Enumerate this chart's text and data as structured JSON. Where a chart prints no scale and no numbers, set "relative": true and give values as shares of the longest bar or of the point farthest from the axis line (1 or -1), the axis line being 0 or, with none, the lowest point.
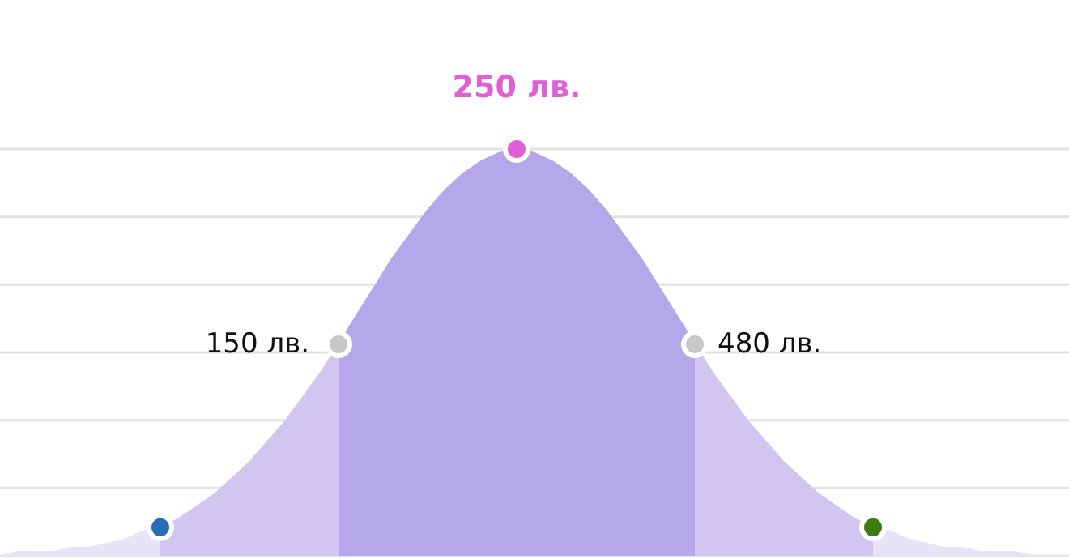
{
  "chart_data": {
    "type": "area",
    "relative": true,
    "grid": "y",
    "legend": false,
    "categories": [
      null,
      null,
      null,
      null,
      null,
      null,
      null,
      null,
      null,
      null,
      null,
      null,
      null,
      null,
      null,
      null,
      null,
      null,
      null,
      null,
      null,
      null,
      null,
      null,
      null,
      null,
      null,
      null,
      null,
      null,
      null,
      null,
      null,
      null,
      null,
      null,
      null,
      null,
      null,
      null,
      null,
      null,
      null,
      null,
      null,
      null,
      null,
      null,
      null,
      null,
      null,
      null,
      null,
      null,
      null,
      null,
      null,
      null,
      null,
      null,
      null
    ],
    "series": [
      {
        "color": "#e8e4f7",
        "values": [
          0,
          0.01,
          0.01,
          0.01,
          0.02,
          0.02,
          0.03,
          0.04,
          0.06,
          0.07,
          null,
          null,
          null,
          null,
          null,
          null,
          null,
          null,
          null,
          null,
          null,
          null,
          null,
          null,
          null,
          null,
          null,
          null,
          null,
          null,
          null,
          null,
          null,
          null,
          null,
          null,
          null,
          null,
          null,
          null,
          null,
          null,
          null,
          null,
          null,
          null,
          null,
          null,
          null,
          0.07,
          0.06,
          0.04,
          0.03,
          0.02,
          0.02,
          0.01,
          0.01,
          0.01,
          0,
          0,
          0
        ]
      },
      {
        "color": "#d0c6f0",
        "values": [
          null,
          null,
          null,
          null,
          null,
          null,
          null,
          null,
          null,
          0.07,
          0.09,
          0.12,
          0.15,
          0.19,
          0.23,
          0.28,
          0.33,
          0.39,
          0.45,
          0.52,
          null,
          null,
          null,
          null,
          null,
          null,
          null,
          null,
          null,
          null,
          null,
          null,
          null,
          null,
          null,
          null,
          null,
          null,
          null,
          0.52,
          0.45,
          0.39,
          0.33,
          0.28,
          0.23,
          0.19,
          0.15,
          0.12,
          0.09,
          0.07,
          null,
          null,
          null,
          null,
          null,
          null,
          null,
          null,
          null,
          null,
          null
        ]
      },
      {
        "color": "#b4a7ea",
        "values": [
          null,
          null,
          null,
          null,
          null,
          null,
          null,
          null,
          null,
          null,
          null,
          null,
          null,
          null,
          null,
          null,
          null,
          null,
          null,
          0.52,
          0.59,
          0.66,
          0.73,
          0.79,
          0.85,
          0.9,
          0.94,
          0.97,
          0.99,
          1,
          0.99,
          0.97,
          0.94,
          0.9,
          0.85,
          0.79,
          0.73,
          0.66,
          0.59,
          0.52,
          null,
          null,
          null,
          null,
          null,
          null,
          null,
          null,
          null,
          null,
          null,
          null,
          null,
          null,
          null,
          null,
          null,
          null,
          null,
          null,
          null
        ]
      }
    ],
    "annotations": [
      "150 лв.",
      "250 лв.",
      "480 лв."
    ]
  }
}
